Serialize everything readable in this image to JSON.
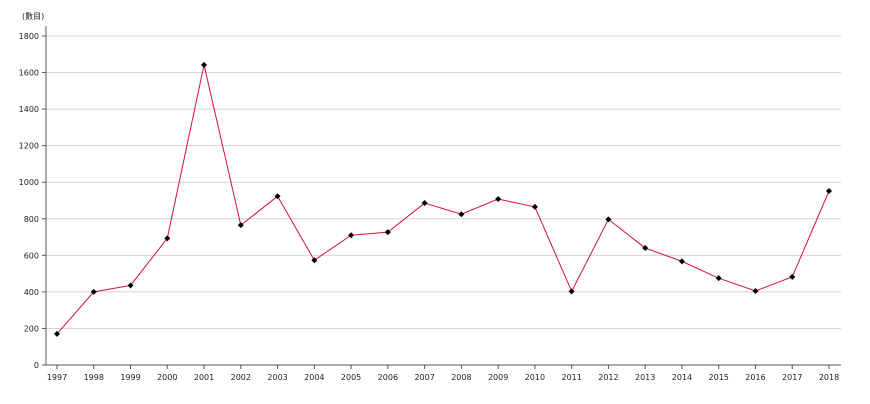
{
  "chart_data": {
    "type": "line",
    "title": "",
    "xlabel": "",
    "ylabel": "",
    "unit_label": "(數目)",
    "x": [
      "1997",
      "1998",
      "1999",
      "2000",
      "2001",
      "2002",
      "2003",
      "2004",
      "2005",
      "2006",
      "2007",
      "2008",
      "2009",
      "2010",
      "2011",
      "2012",
      "2013",
      "2014",
      "2015",
      "2016",
      "2017",
      "2018"
    ],
    "series": [
      {
        "values": [
          170,
          400,
          435,
          693,
          1642,
          765,
          923,
          573,
          710,
          727,
          886,
          825,
          908,
          865,
          403,
          797,
          640,
          567,
          475,
          405,
          482,
          952
        ],
        "color": "#d6103c",
        "marker_color": "#000000"
      }
    ],
    "yticks": [
      0,
      200,
      400,
      600,
      800,
      1000,
      1200,
      1400,
      1600,
      1800
    ],
    "ylim": [
      0,
      1800
    ],
    "grid": true,
    "legend": "none"
  }
}
